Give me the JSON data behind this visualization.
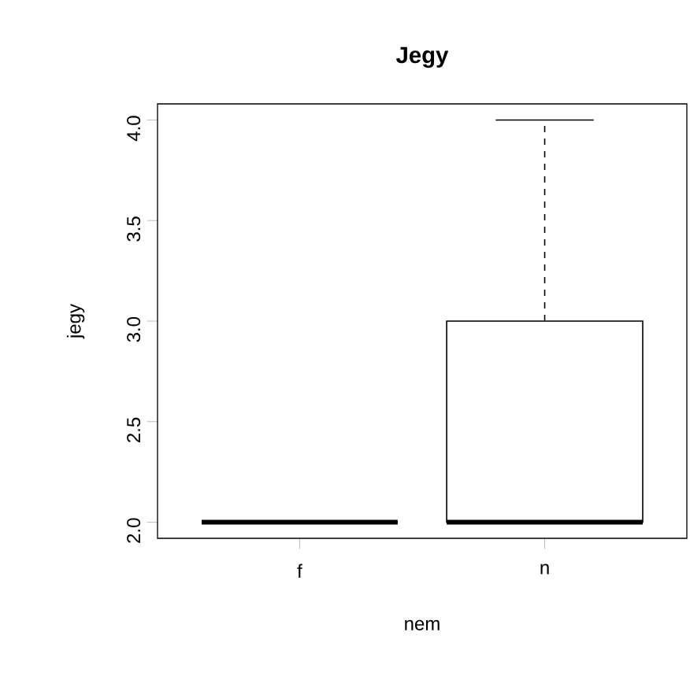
{
  "chart_data": {
    "type": "box",
    "title": "Jegy",
    "xlabel": "nem",
    "ylabel": "jegy",
    "categories": [
      "f",
      "n"
    ],
    "boxes": [
      {
        "low": 2,
        "q1": 2,
        "median": 2,
        "q3": 2,
        "high": 2
      },
      {
        "low": 2,
        "q1": 2,
        "median": 2,
        "q3": 3,
        "high": 4
      }
    ],
    "ylim": [
      1.92,
      4.08
    ],
    "yticks": [
      {
        "value": 2,
        "label": "2.0"
      },
      {
        "value": 2.5,
        "label": "2.5"
      },
      {
        "value": 3,
        "label": "3.0"
      },
      {
        "value": 3.5,
        "label": "3.5"
      },
      {
        "value": 4,
        "label": "4.0"
      }
    ]
  }
}
